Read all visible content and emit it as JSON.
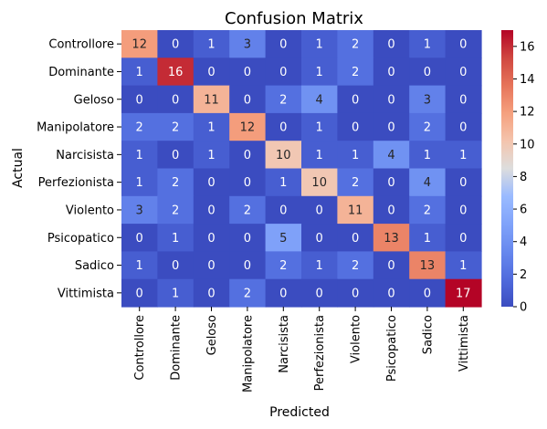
{
  "chart_data": {
    "type": "heatmap",
    "title": "Confusion Matrix",
    "xlabel": "Predicted",
    "ylabel": "Actual",
    "x_categories": [
      "Controllore",
      "Dominante",
      "Geloso",
      "Manipolatore",
      "Narcisista",
      "Perfezionista",
      "Violento",
      "Psicopatico",
      "Sadico",
      "Vittimista"
    ],
    "y_categories": [
      "Controllore",
      "Dominante",
      "Geloso",
      "Manipolatore",
      "Narcisista",
      "Perfezionista",
      "Violento",
      "Psicopatico",
      "Sadico",
      "Vittimista"
    ],
    "values": [
      [
        12,
        0,
        1,
        3,
        0,
        1,
        2,
        0,
        1,
        0
      ],
      [
        1,
        16,
        0,
        0,
        0,
        1,
        2,
        0,
        0,
        0
      ],
      [
        0,
        0,
        11,
        0,
        2,
        4,
        0,
        0,
        3,
        0
      ],
      [
        2,
        2,
        1,
        12,
        0,
        1,
        0,
        0,
        2,
        0
      ],
      [
        1,
        0,
        1,
        0,
        10,
        1,
        1,
        4,
        1,
        1
      ],
      [
        1,
        2,
        0,
        0,
        1,
        10,
        2,
        0,
        4,
        0
      ],
      [
        3,
        2,
        0,
        2,
        0,
        0,
        11,
        0,
        2,
        0
      ],
      [
        0,
        1,
        0,
        0,
        5,
        0,
        0,
        13,
        1,
        0
      ],
      [
        1,
        0,
        0,
        0,
        2,
        1,
        2,
        0,
        13,
        1
      ],
      [
        0,
        1,
        0,
        2,
        0,
        0,
        0,
        0,
        0,
        17
      ]
    ],
    "colormap": "coolwarm",
    "vmin": 0,
    "vmax": 17,
    "colorbar_ticks": [
      0,
      2,
      4,
      6,
      8,
      10,
      12,
      14,
      16
    ],
    "annotations": true
  }
}
